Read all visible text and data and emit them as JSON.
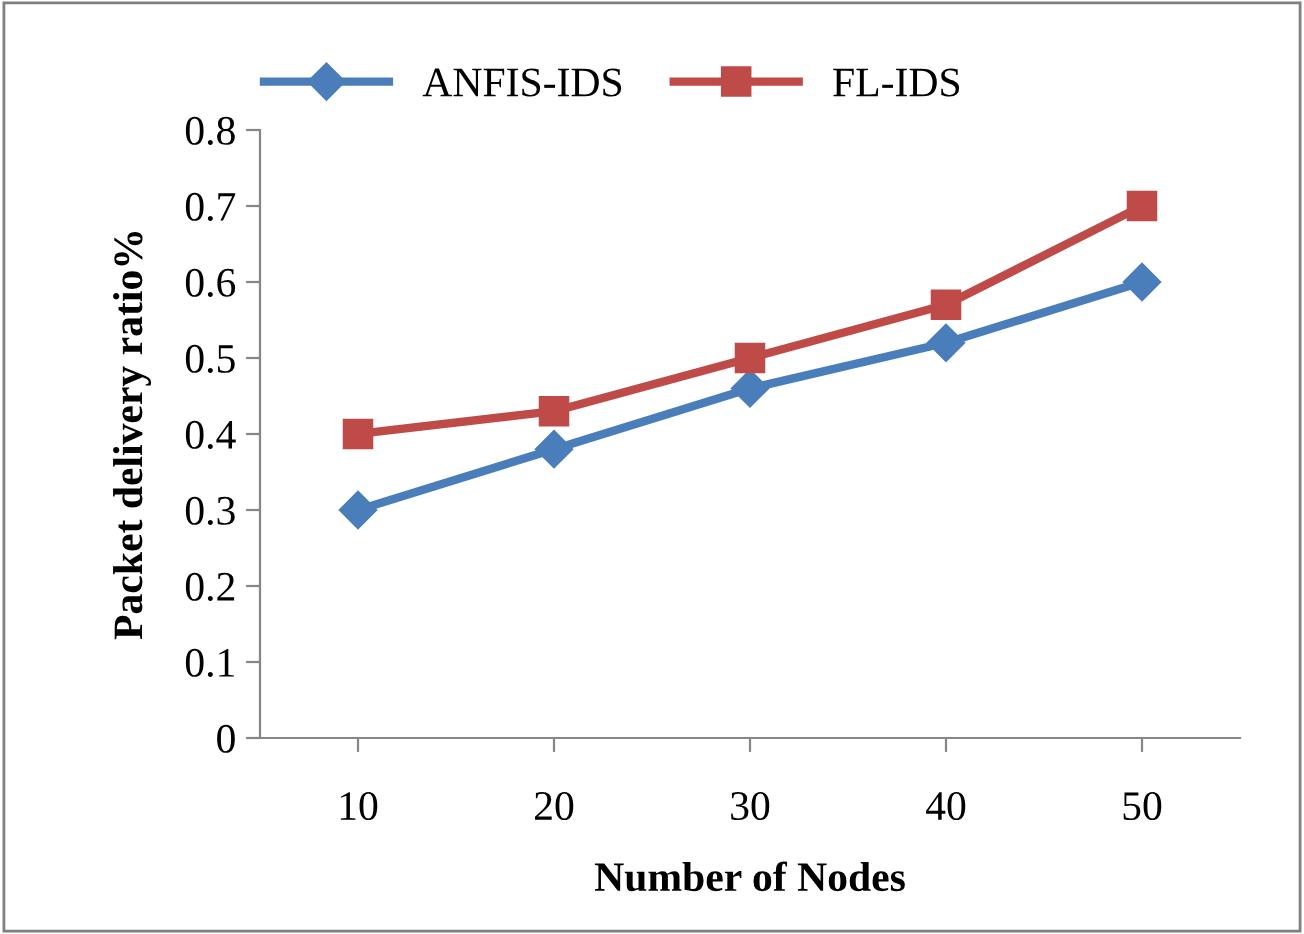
{
  "chart_data": {
    "type": "line",
    "xlabel": "Number of Nodes",
    "ylabel": "Packet delivery ratio%",
    "categories": [
      "10",
      "20",
      "30",
      "40",
      "50"
    ],
    "series": [
      {
        "name": "ANFIS-IDS",
        "color": "#4a7ebb",
        "marker": "diamond",
        "values": [
          0.3,
          0.38,
          0.46,
          0.52,
          0.6
        ]
      },
      {
        "name": "FL-IDS",
        "color": "#be4b48",
        "marker": "square",
        "values": [
          0.4,
          0.43,
          0.5,
          0.57,
          0.7
        ]
      }
    ],
    "ylim": [
      0,
      0.8
    ],
    "yticks": [
      {
        "value": 0,
        "label": "0"
      },
      0.1,
      0.2,
      0.3,
      0.4,
      0.5,
      0.6,
      0.7,
      0.8
    ],
    "grid": false,
    "legend": "top",
    "line_style": "solid"
  }
}
